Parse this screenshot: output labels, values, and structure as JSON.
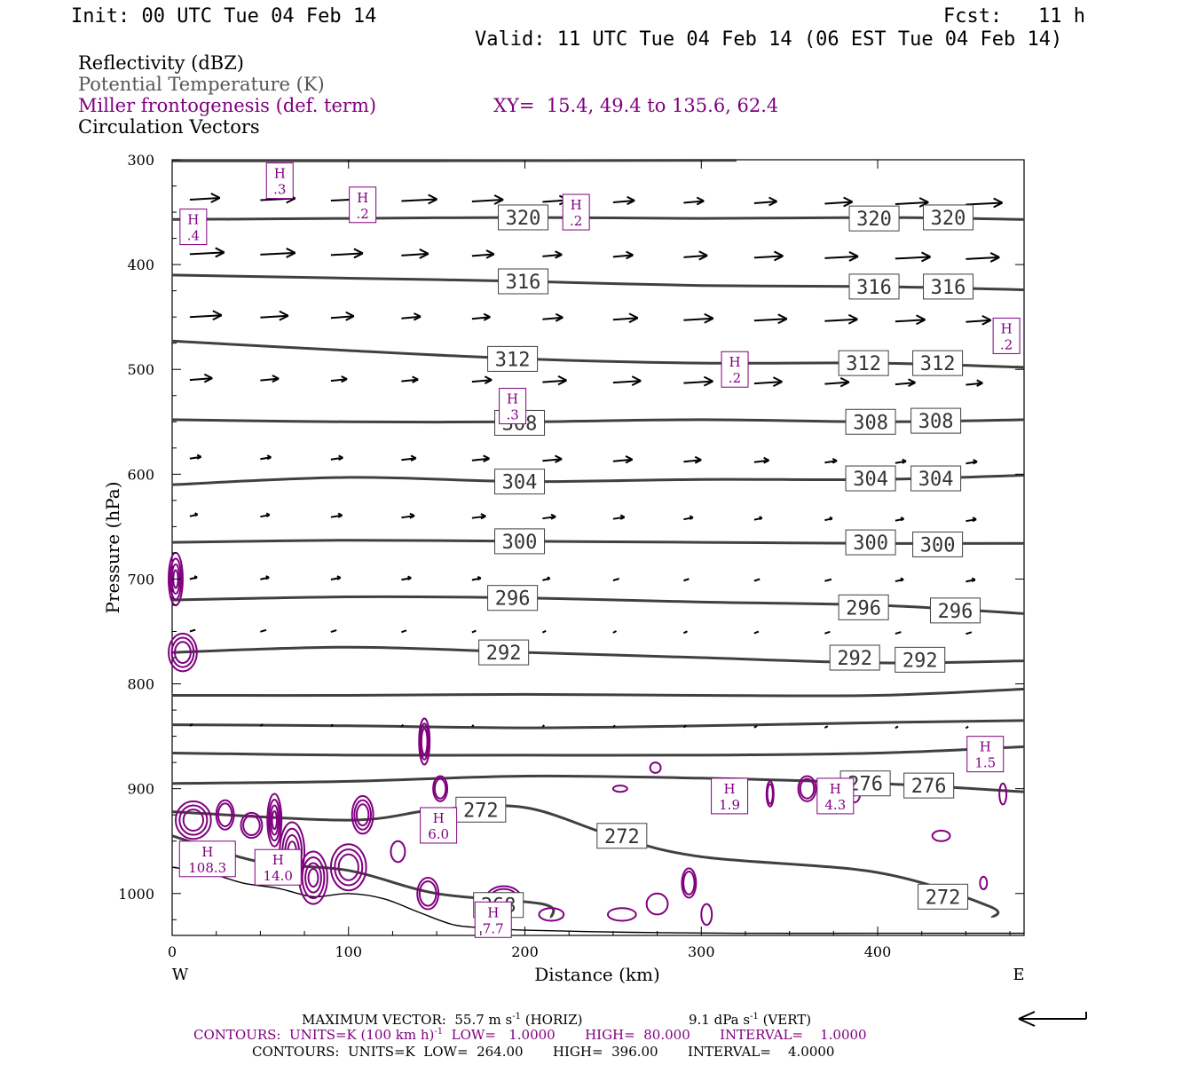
{
  "header": {
    "init": "Init: 00 UTC Tue 04 Feb 14",
    "fcst_label": "Fcst:",
    "fcst_value": "11 h",
    "valid": "Valid: 11 UTC Tue 04 Feb 14 (06 EST Tue 04 Feb 14)"
  },
  "legend": {
    "line1": "Reflectivity (dBZ)",
    "line2": "Potential Temperature (K)",
    "line3": "Miller frontogenesis (def. term)",
    "xy": "XY=  15.4, 49.4 to 135.6, 62.4",
    "line4": "Circulation Vectors"
  },
  "colors": {
    "theta": "#404040",
    "fronto": "#800080",
    "vector": "#000000",
    "text": "#000000",
    "legend_gray": "#555555"
  },
  "footer": {
    "vector_a": "MAXIMUM VECTOR:  55.7 m s",
    "vector_sup1": "-1",
    "vector_b": " (HORIZ)",
    "vector_c": "9.1 dPa s",
    "vector_sup2": "-1",
    "vector_d": " (VERT)",
    "fronto_a": "CONTOURS:  UNITS=K (100 km h)",
    "fronto_sup": "-1",
    "fronto_b": "  LOW=   1.0000       HIGH=  80.000       INTERVAL=    1.0000",
    "theta": "CONTOURS:  UNITS=K  LOW=  264.00       HIGH=  396.00       INTERVAL=    4.0000"
  },
  "chart_data": {
    "type": "cross-section",
    "xlabel": "Distance (km)",
    "ylabel": "Pressure (hPa)",
    "xlim": [
      0,
      483
    ],
    "ylim": [
      300,
      1040
    ],
    "x_ticks": [
      0,
      100,
      200,
      300,
      400
    ],
    "y_ticks": [
      300,
      400,
      500,
      600,
      700,
      800,
      900,
      1000
    ],
    "x_left_label": "W",
    "x_right_label": "E",
    "theta_levels": [
      {
        "k": "320",
        "p": [
          [
            0,
            357
          ],
          [
            100,
            356
          ],
          [
            200,
            355
          ],
          [
            300,
            356
          ],
          [
            400,
            355
          ],
          [
            483,
            357
          ]
        ],
        "labels": [
          [
            199,
            355
          ],
          [
            398,
            356
          ],
          [
            440,
            355
          ]
        ]
      },
      {
        "k": "316",
        "p": [
          [
            0,
            410
          ],
          [
            100,
            413
          ],
          [
            200,
            416
          ],
          [
            300,
            420
          ],
          [
            400,
            421
          ],
          [
            483,
            424
          ]
        ],
        "labels": [
          [
            199,
            416
          ],
          [
            398,
            421
          ],
          [
            440,
            421
          ]
        ]
      },
      {
        "k": "312",
        "p": [
          [
            0,
            473
          ],
          [
            100,
            482
          ],
          [
            200,
            490
          ],
          [
            300,
            494
          ],
          [
            400,
            494
          ],
          [
            483,
            498
          ]
        ],
        "labels": [
          [
            193,
            490
          ],
          [
            392,
            494
          ],
          [
            434,
            494
          ]
        ]
      },
      {
        "k": "308",
        "p": [
          [
            0,
            548
          ],
          [
            100,
            550
          ],
          [
            200,
            550
          ],
          [
            300,
            548
          ],
          [
            400,
            550
          ],
          [
            483,
            548
          ]
        ],
        "labels": [
          [
            197,
            551
          ],
          [
            396,
            550
          ],
          [
            433,
            549
          ]
        ]
      },
      {
        "k": "304",
        "p": [
          [
            0,
            610
          ],
          [
            100,
            603
          ],
          [
            200,
            607
          ],
          [
            300,
            605
          ],
          [
            400,
            605
          ],
          [
            483,
            601
          ]
        ],
        "labels": [
          [
            197,
            607
          ],
          [
            396,
            604
          ],
          [
            433,
            604
          ]
        ]
      },
      {
        "k": "300",
        "p": [
          [
            0,
            665
          ],
          [
            100,
            663
          ],
          [
            200,
            664
          ],
          [
            300,
            665
          ],
          [
            400,
            666
          ],
          [
            483,
            666
          ]
        ],
        "labels": [
          [
            197,
            664
          ],
          [
            396,
            665
          ],
          [
            434,
            667
          ]
        ]
      },
      {
        "k": "296",
        "p": [
          [
            0,
            720
          ],
          [
            100,
            717
          ],
          [
            200,
            718
          ],
          [
            300,
            722
          ],
          [
            400,
            725
          ],
          [
            483,
            733
          ]
        ],
        "labels": [
          [
            193,
            718
          ],
          [
            392,
            727
          ],
          [
            444,
            730
          ]
        ]
      },
      {
        "k": "292",
        "p": [
          [
            0,
            770
          ],
          [
            100,
            765
          ],
          [
            200,
            770
          ],
          [
            300,
            775
          ],
          [
            400,
            780
          ],
          [
            483,
            778
          ]
        ],
        "labels": [
          [
            188,
            770
          ],
          [
            387,
            775
          ],
          [
            424,
            777
          ]
        ]
      },
      {
        "k": "288",
        "p": [
          [
            0,
            811
          ],
          [
            100,
            811
          ],
          [
            200,
            810
          ],
          [
            300,
            811
          ],
          [
            400,
            811
          ],
          [
            483,
            805
          ]
        ],
        "labels": []
      },
      {
        "k": "284",
        "p": [
          [
            0,
            839
          ],
          [
            100,
            840
          ],
          [
            200,
            842
          ],
          [
            300,
            840
          ],
          [
            400,
            837
          ],
          [
            483,
            835
          ]
        ],
        "labels": []
      },
      {
        "k": "280",
        "p": [
          [
            0,
            866
          ],
          [
            100,
            868
          ],
          [
            200,
            868
          ],
          [
            300,
            868
          ],
          [
            400,
            866
          ],
          [
            483,
            860
          ]
        ],
        "labels": []
      },
      {
        "k": "276",
        "p": [
          [
            0,
            895
          ],
          [
            100,
            893
          ],
          [
            200,
            888
          ],
          [
            300,
            890
          ],
          [
            400,
            895
          ],
          [
            483,
            903
          ]
        ],
        "labels": [
          [
            393,
            895
          ],
          [
            429,
            897
          ]
        ]
      },
      {
        "k": "272",
        "p": [
          [
            0,
            922
          ],
          [
            100,
            930
          ],
          [
            150,
            920
          ],
          [
            200,
            918
          ],
          [
            250,
            945
          ],
          [
            300,
            965
          ],
          [
            400,
            980
          ],
          [
            463,
            1012
          ],
          [
            465,
            1023
          ]
        ],
        "labels": [
          [
            175,
            920
          ],
          [
            255,
            945
          ],
          [
            437,
            1003
          ]
        ]
      },
      {
        "k": "268",
        "p": [
          [
            0,
            945
          ],
          [
            50,
            970
          ],
          [
            100,
            978
          ],
          [
            150,
            1000
          ],
          [
            210,
            1010
          ],
          [
            215,
            1023
          ]
        ],
        "labels": [
          [
            185,
            1011
          ]
        ]
      }
    ],
    "fronto_highs": [
      {
        "x": 61,
        "p": 320,
        "label": ".3"
      },
      {
        "x": 108,
        "p": 343,
        "label": ".2"
      },
      {
        "x": 12,
        "p": 364,
        "label": ".4"
      },
      {
        "x": 229,
        "p": 350,
        "label": ".2"
      },
      {
        "x": 319,
        "p": 500,
        "label": ".2"
      },
      {
        "x": 473,
        "p": 468,
        "label": ".2"
      },
      {
        "x": 193,
        "p": 535,
        "label": ".3"
      },
      {
        "x": 151,
        "p": 935,
        "label": "6.0"
      },
      {
        "x": 316,
        "p": 907,
        "label": "1.9"
      },
      {
        "x": 376,
        "p": 907,
        "label": "4.3"
      },
      {
        "x": 461,
        "p": 867,
        "label": "1.5"
      },
      {
        "x": 20,
        "p": 967,
        "label": "108.3"
      },
      {
        "x": 60,
        "p": 975,
        "label": "14.0"
      },
      {
        "x": 182,
        "p": 1025,
        "label": "7.7"
      }
    ],
    "vector_rows": [
      {
        "p": 338,
        "len": 38
      },
      {
        "p": 390,
        "len": 36
      },
      {
        "p": 450,
        "len": 34
      },
      {
        "p": 510,
        "len": 30
      },
      {
        "p": 585,
        "len": 20
      },
      {
        "p": 640,
        "len": 14
      },
      {
        "p": 700,
        "len": 10
      },
      {
        "p": 750,
        "len": 6
      },
      {
        "p": 840,
        "len": 3
      }
    ]
  }
}
